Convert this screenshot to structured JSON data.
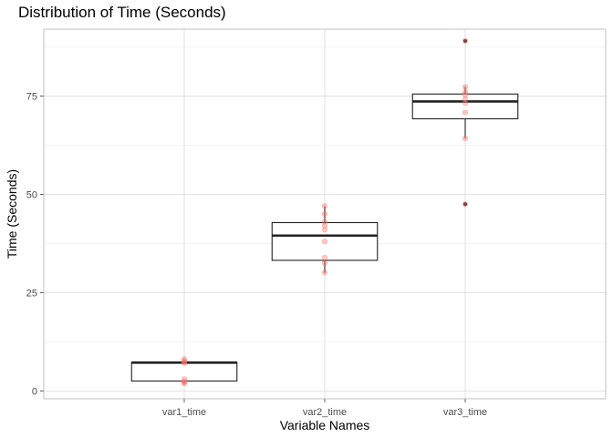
{
  "chart_data": {
    "type": "box",
    "title": "Distribution of Time (Seconds)",
    "xlabel": "Variable Names",
    "ylabel": "Time (Seconds)",
    "ylim": [
      -2,
      92
    ],
    "yticks": [
      0,
      25,
      50,
      75
    ],
    "grid": true,
    "legend": "none",
    "colors": {
      "box_stroke": "#222222",
      "point_fill": "#f8766d",
      "grid_major": "#d9d9d9",
      "grid_minor": "#eeeeee",
      "panel_border": "#b3b3b3"
    },
    "categories": [
      "var1_time",
      "var2_time",
      "var3_time"
    ],
    "boxes": [
      {
        "category": "var1_time",
        "min": 2,
        "q1": 2.5,
        "median": 7.2,
        "q3": 7.3,
        "max": 8,
        "points": [
          1.9,
          2.2,
          2.4,
          3.0,
          7.1,
          7.3,
          7.6,
          8.1
        ]
      },
      {
        "category": "var2_time",
        "min": 30,
        "q1": 33.2,
        "median": 39.5,
        "q3": 42.8,
        "max": 47,
        "points": [
          30.1,
          32.5,
          33.9,
          38.0,
          41.0,
          42.0,
          43.0,
          45.0,
          47.0
        ]
      },
      {
        "category": "var3_time",
        "min": 64.2,
        "q1": 69.2,
        "median": 73.6,
        "q3": 75.5,
        "max": 77.3,
        "outliers": [
          47.5,
          89.0
        ],
        "points": [
          47.5,
          64.2,
          70.8,
          73.2,
          74.2,
          75.3,
          76.0,
          77.3,
          89.0
        ]
      }
    ]
  }
}
